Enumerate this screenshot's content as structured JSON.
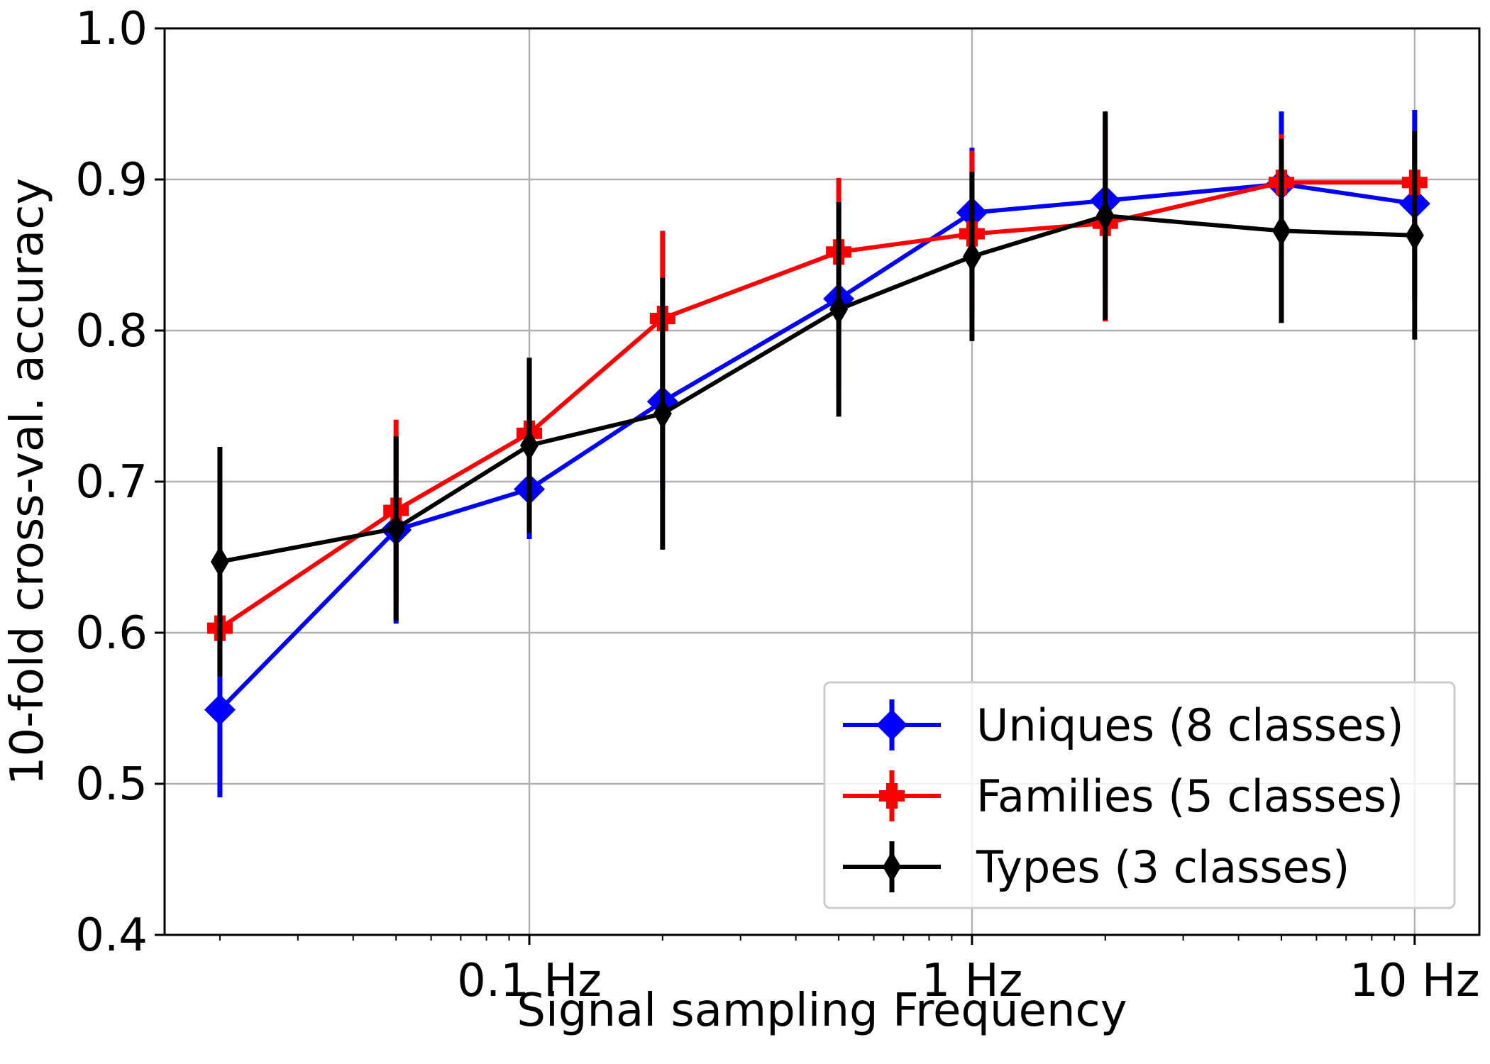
{
  "chart_data": {
    "type": "line",
    "title": "",
    "xlabel": "Signal sampling Frequency",
    "ylabel": "10-fold cross-val. accuracy",
    "xscale": "log",
    "xlim": [
      0.015,
      14
    ],
    "ylim": [
      0.4,
      1.0
    ],
    "grid": true,
    "legend_position": "lower-right",
    "x": [
      0.02,
      0.05,
      0.1,
      0.2,
      0.5,
      1,
      2,
      5,
      10
    ],
    "x_ticks": [
      {
        "value": 0.1,
        "label": "0.1 Hz"
      },
      {
        "value": 1,
        "label": "1 Hz"
      },
      {
        "value": 10,
        "label": "10 Hz"
      }
    ],
    "y_ticks": [
      {
        "value": 0.4,
        "label": "0.4"
      },
      {
        "value": 0.5,
        "label": "0.5"
      },
      {
        "value": 0.6,
        "label": "0.6"
      },
      {
        "value": 0.7,
        "label": "0.7"
      },
      {
        "value": 0.8,
        "label": "0.8"
      },
      {
        "value": 0.9,
        "label": "0.9"
      },
      {
        "value": 1.0,
        "label": "1.0"
      }
    ],
    "series": [
      {
        "name": "Uniques (8 classes)",
        "color": "#0000ff",
        "marker": "diamond",
        "values": [
          0.549,
          0.668,
          0.695,
          0.753,
          0.821,
          0.878,
          0.886,
          0.897,
          0.884
        ],
        "errors": [
          0.058,
          0.062,
          0.033,
          0.058,
          0.06,
          0.043,
          0.057,
          0.048,
          0.062
        ]
      },
      {
        "name": "Families (5 classes)",
        "color": "#ff0000",
        "marker": "plus",
        "values": [
          0.603,
          0.681,
          0.732,
          0.808,
          0.852,
          0.864,
          0.871,
          0.898,
          0.898
        ],
        "errors": [
          0.032,
          0.06,
          0.05,
          0.058,
          0.049,
          0.055,
          0.065,
          0.032,
          0.032
        ]
      },
      {
        "name": "Types (3 classes)",
        "color": "#000000",
        "marker": "thin_diamond",
        "values": [
          0.647,
          0.669,
          0.724,
          0.745,
          0.814,
          0.849,
          0.876,
          0.866,
          0.863
        ],
        "errors": [
          0.076,
          0.061,
          0.058,
          0.09,
          0.071,
          0.056,
          0.069,
          0.061,
          0.069
        ]
      }
    ]
  }
}
